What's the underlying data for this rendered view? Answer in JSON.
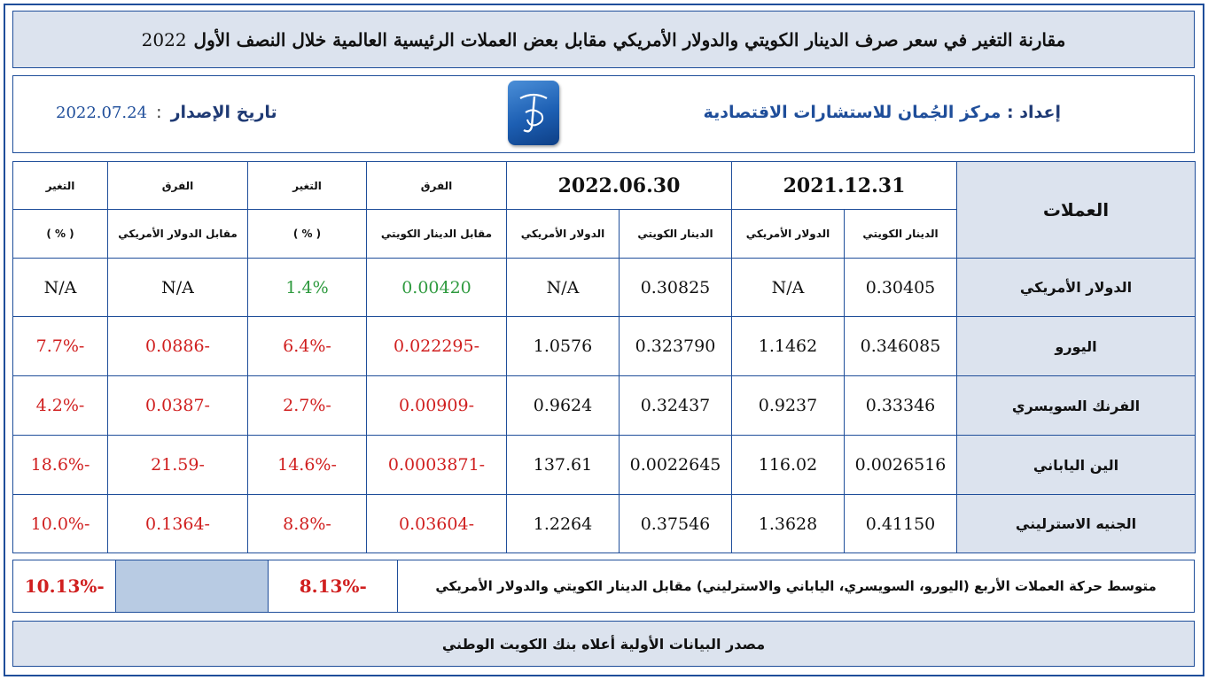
{
  "title": {
    "text": "مقارنة التغير في سعر صرف الدينار الكويتي والدولار الأمريكي مقابل بعض العملات الرئيسية العالمية خلال النصف الأول",
    "year": "2022"
  },
  "info": {
    "prepared_label": "إعداد",
    "prepared_sep": ":",
    "prepared_value": "مركز الجُمان للاستشارات الاقتصادية",
    "issue_label": "تاريخ الإصدار",
    "issue_sep": ":",
    "issue_date": "2022.07.24"
  },
  "headers": {
    "currencies": "العملات",
    "date1": "2021.12.31",
    "date2": "2022.06.30",
    "kwd": "الدينار الكويتي",
    "usd": "الدولار الأمريكي",
    "diff": "الفرق",
    "vs_kwd": "مقابل الدينار الكويتي",
    "change": "التغير",
    "pct": "( % )",
    "vs_usd": "مقابل الدولار الأمريكي"
  },
  "rows": [
    {
      "name": "الدولار الأمريكي",
      "kwd_2021": "0.30405",
      "usd_2021": "N/A",
      "kwd_2022": "0.30825",
      "usd_2022": "N/A",
      "diff_kwd": "0.00420",
      "chg_kwd": "1.4%",
      "diff_usd": "N/A",
      "chg_usd": "N/A"
    },
    {
      "name": "اليورو",
      "kwd_2021": "0.346085",
      "usd_2021": "1.1462",
      "kwd_2022": "0.323790",
      "usd_2022": "1.0576",
      "diff_kwd": "-0.022295",
      "chg_kwd": "-6.4%",
      "diff_usd": "-0.0886",
      "chg_usd": "-7.7%"
    },
    {
      "name": "الفرنك السويسري",
      "kwd_2021": "0.33346",
      "usd_2021": "0.9237",
      "kwd_2022": "0.32437",
      "usd_2022": "0.9624",
      "diff_kwd": "-0.00909",
      "chg_kwd": "-2.7%",
      "diff_usd": "-0.0387",
      "chg_usd": "-4.2%"
    },
    {
      "name": "الين الياباني",
      "kwd_2021": "0.0026516",
      "usd_2021": "116.02",
      "kwd_2022": "0.0022645",
      "usd_2022": "137.61",
      "diff_kwd": "-0.0003871",
      "chg_kwd": "-14.6%",
      "diff_usd": "-21.59",
      "chg_usd": "-18.6%"
    },
    {
      "name": "الجنيه الاسترليني",
      "kwd_2021": "0.41150",
      "usd_2021": "1.3628",
      "kwd_2022": "0.37546",
      "usd_2022": "1.2264",
      "diff_kwd": "-0.03604",
      "chg_kwd": "-8.8%",
      "diff_usd": "-0.1364",
      "chg_usd": "-10.0%"
    }
  ],
  "average": {
    "label": "متوسط حركة العملات الأربع (اليورو، السويسري، الياباني والاسترليني) مقابل الدينار الكويتي والدولار الأمريكي",
    "vs_kwd": "-8.13%",
    "vs_usd": "-10.13%"
  },
  "source": "مصدر البيانات الأولية أعلاه بنك الكويت الوطني",
  "colors": {
    "border": "#1f4e9a",
    "header_fill": "#dce3ee",
    "positive": "#2e9a3e",
    "negative": "#d01f1f",
    "empty_cell": "#b8cbe3"
  },
  "logo": "aljuman-logo"
}
